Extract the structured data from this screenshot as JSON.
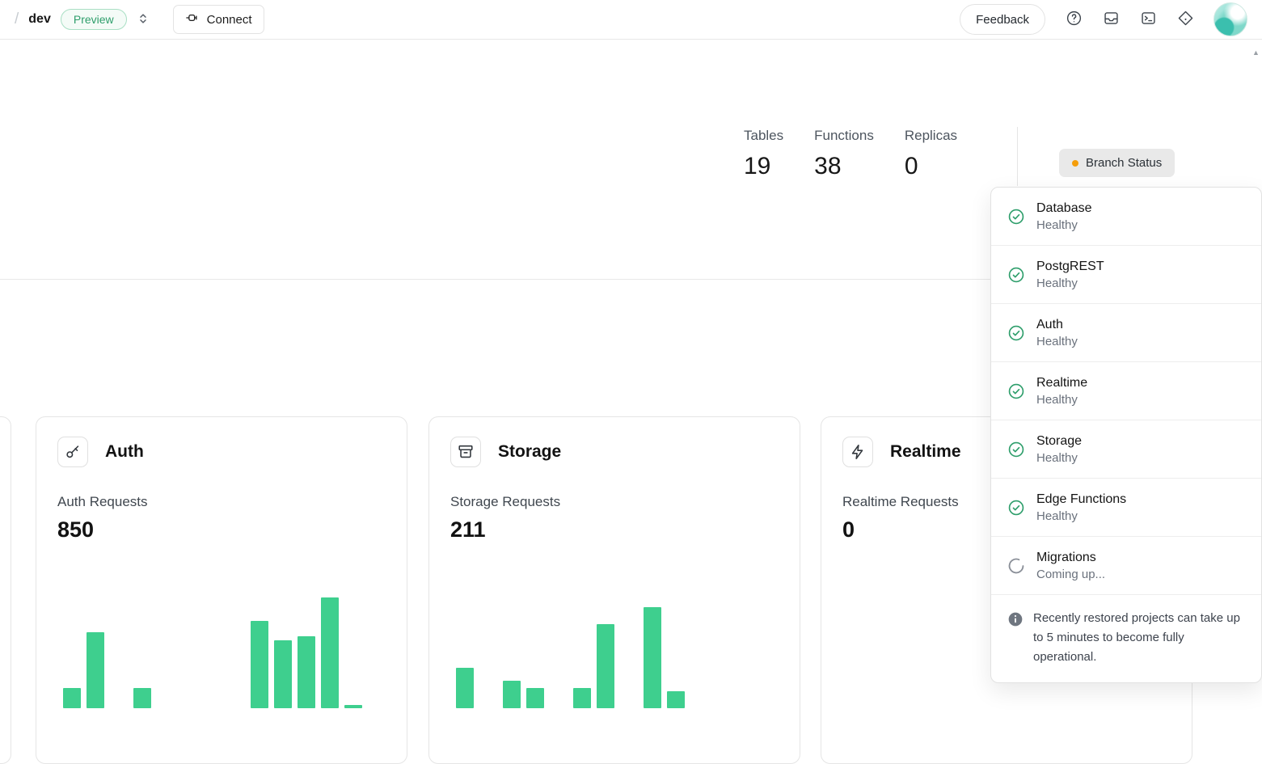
{
  "header": {
    "breadcrumb_separator": "/",
    "project_name": "dev",
    "environment_badge": "Preview",
    "connect_label": "Connect",
    "feedback_label": "Feedback"
  },
  "stats": [
    {
      "label": "Tables",
      "value": "19"
    },
    {
      "label": "Functions",
      "value": "38"
    },
    {
      "label": "Replicas",
      "value": "0"
    }
  ],
  "branch_status": {
    "button_label": "Branch Status",
    "indicator_color": "#f59e0b",
    "services": [
      {
        "name": "Database",
        "status": "Healthy",
        "state": "healthy"
      },
      {
        "name": "PostgREST",
        "status": "Healthy",
        "state": "healthy"
      },
      {
        "name": "Auth",
        "status": "Healthy",
        "state": "healthy"
      },
      {
        "name": "Realtime",
        "status": "Healthy",
        "state": "healthy"
      },
      {
        "name": "Storage",
        "status": "Healthy",
        "state": "healthy"
      },
      {
        "name": "Edge Functions",
        "status": "Healthy",
        "state": "healthy"
      },
      {
        "name": "Migrations",
        "status": "Coming up...",
        "state": "loading"
      }
    ],
    "note": "Recently restored projects can take up to 5 minutes to become fully operational."
  },
  "cards": [
    {
      "title": "Auth",
      "icon": "key-icon",
      "metric_label": "Auth Requests",
      "metric_value": "850",
      "chart": 0
    },
    {
      "title": "Storage",
      "icon": "archive-icon",
      "metric_label": "Storage Requests",
      "metric_value": "211",
      "chart": 1
    },
    {
      "title": "Realtime",
      "icon": "bolt-icon",
      "metric_label": "Realtime Requests",
      "metric_value": "0",
      "chart": 2
    }
  ],
  "chart_data": [
    {
      "type": "bar",
      "title": "Auth Requests",
      "total": 850,
      "bar_color": "#3ecf8e",
      "values": [
        25,
        94,
        0,
        25,
        0,
        0,
        0,
        0,
        108,
        84,
        89,
        137,
        4
      ],
      "note": "relative bar heights estimated in px; time buckets unlabeled, chart cut off at viewport bottom"
    },
    {
      "type": "bar",
      "title": "Storage Requests",
      "total": 211,
      "bar_color": "#3ecf8e",
      "values": [
        50,
        0,
        34,
        25,
        0,
        25,
        104,
        0,
        125,
        21,
        0,
        0,
        0
      ],
      "note": "relative bar heights estimated in px; time buckets unlabeled, chart cut off at viewport bottom"
    },
    {
      "type": "bar",
      "title": "Realtime Requests",
      "total": 0,
      "bar_color": "#3ecf8e",
      "values": [
        0,
        0,
        0,
        0,
        0,
        0,
        0,
        0,
        0,
        0,
        0,
        0,
        0
      ],
      "note": "no visible bars; card partially covered by branch status popover"
    }
  ],
  "colors": {
    "brand_green": "#3ecf8e",
    "status_green": "#2e9e6b",
    "warning_amber": "#f59e0b"
  },
  "scrollbar": {
    "up_arrow": "▲"
  }
}
